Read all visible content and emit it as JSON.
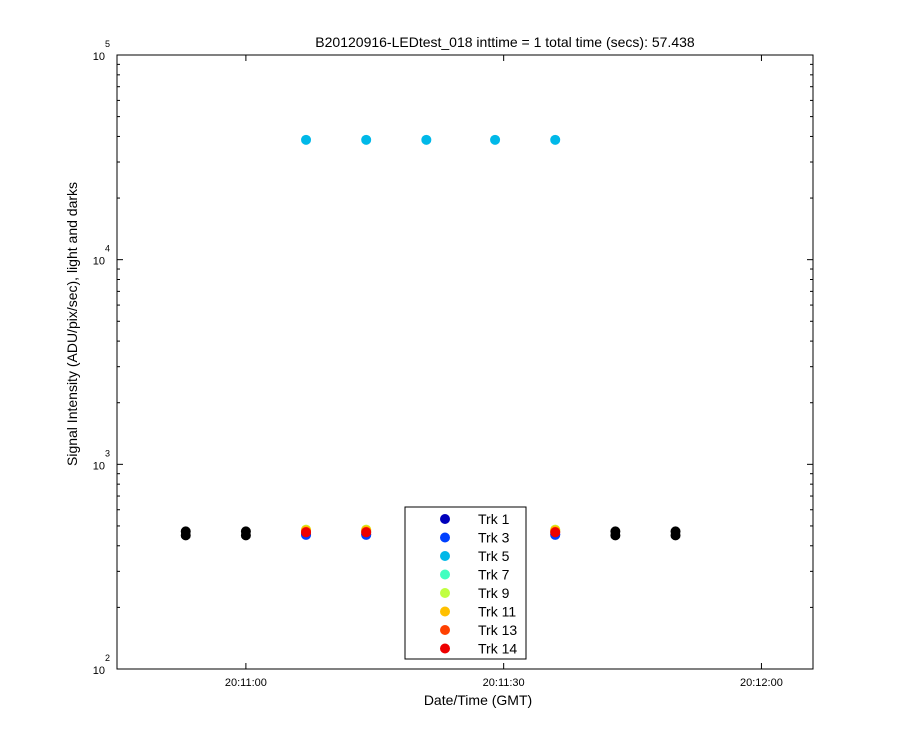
{
  "chart_data": {
    "type": "scatter",
    "title": "B20120916-LEDtest_018 inttime = 1 total time (secs): 57.438",
    "xlabel": "Date/Time (GMT)",
    "ylabel": "Signal Intensity (ADU/pix/sec), light and darks",
    "y_scale": "log",
    "ylim": [
      100,
      100000
    ],
    "y_ticks": [
      {
        "base": "10",
        "exp": "2",
        "value": 100
      },
      {
        "base": "10",
        "exp": "3",
        "value": 1000
      },
      {
        "base": "10",
        "exp": "4",
        "value": 10000
      },
      {
        "base": "10",
        "exp": "5",
        "value": 100000
      }
    ],
    "xlim": [
      "20:10:45",
      "20:12:06"
    ],
    "x_ticks": [
      "20:11:00",
      "20:11:30",
      "20:12:00"
    ],
    "grid": false,
    "legend_position": "bottom-center",
    "series": [
      {
        "name": "Trk 1",
        "color": "#0000bb",
        "x": [
          "20:11:07",
          "20:11:14",
          "20:11:36"
        ],
        "y": [
          455,
          455,
          455
        ]
      },
      {
        "name": "Trk 3",
        "color": "#0040ff",
        "x": [
          "20:11:07",
          "20:11:14",
          "20:11:36"
        ],
        "y": [
          452,
          452,
          452
        ]
      },
      {
        "name": "Trk 5",
        "color": "#00b8e8",
        "x": [
          "20:11:07",
          "20:11:14",
          "20:11:21",
          "20:11:29",
          "20:11:36"
        ],
        "y": [
          38500,
          38500,
          38500,
          38500,
          38500
        ]
      },
      {
        "name": "Trk 7",
        "color": "#40ffc0",
        "x": [
          "20:11:07",
          "20:11:14",
          "20:11:36"
        ],
        "y": [
          470,
          470,
          470
        ]
      },
      {
        "name": "Trk 9",
        "color": "#c0ff40",
        "x": [
          "20:11:07",
          "20:11:14",
          "20:11:36"
        ],
        "y": [
          480,
          480,
          480
        ]
      },
      {
        "name": "Trk 11",
        "color": "#ffc000",
        "x": [
          "20:11:07",
          "20:11:14",
          "20:11:36"
        ],
        "y": [
          476,
          476,
          476
        ]
      },
      {
        "name": "Trk 13",
        "color": "#ff4000",
        "x": [
          "20:11:07",
          "20:11:14",
          "20:11:36"
        ],
        "y": [
          468,
          468,
          468
        ]
      },
      {
        "name": "Trk 14",
        "color": "#ee0000",
        "x": [
          "20:11:07",
          "20:11:14",
          "20:11:36"
        ],
        "y": [
          465,
          465,
          465
        ]
      }
    ],
    "darks": {
      "color": "#000000",
      "x": [
        "20:10:53",
        "20:11:00",
        "20:11:43",
        "20:11:50"
      ],
      "y": [
        460,
        460,
        460,
        460
      ]
    }
  }
}
